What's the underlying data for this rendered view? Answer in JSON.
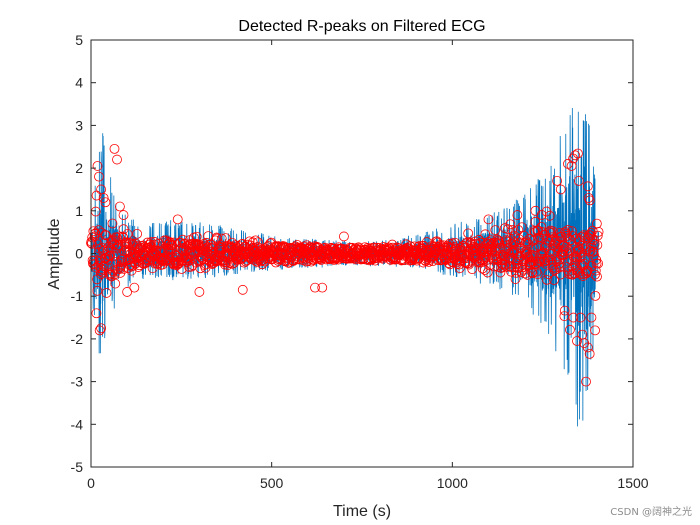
{
  "watermark": "CSDN @阔神之光",
  "colors": {
    "signal": "#0072BD",
    "peaks": "#FF0000",
    "axis": "#262626",
    "background": "#FFFFFF"
  },
  "chart_data": {
    "type": "line",
    "title": "Detected R-peaks on Filtered ECG",
    "xlabel": "Time (s)",
    "ylabel": "Amplitude",
    "xlim": [
      0,
      1500
    ],
    "ylim": [
      -5,
      5
    ],
    "x_ticks": [
      0,
      500,
      1000,
      1500
    ],
    "y_ticks": [
      -5,
      -4,
      -3,
      -2,
      -1,
      0,
      1,
      2,
      3,
      4,
      5
    ],
    "grid": false,
    "series": [
      {
        "name": "Filtered ECG",
        "style": "line",
        "x_range": [
          0,
          1405
        ],
        "envelope": {
          "x": [
            0,
            10,
            20,
            30,
            50,
            75,
            100,
            150,
            200,
            300,
            400,
            500,
            600,
            700,
            800,
            900,
            1000,
            1100,
            1150,
            1200,
            1250,
            1300,
            1330,
            1350,
            1370,
            1390,
            1405
          ],
          "upper": [
            1.0,
            1.8,
            2.7,
            3.0,
            2.0,
            1.4,
            0.9,
            0.7,
            0.8,
            0.75,
            0.6,
            0.45,
            0.35,
            0.3,
            0.3,
            0.45,
            0.7,
            0.9,
            1.1,
            1.4,
            1.9,
            2.8,
            3.8,
            4.4,
            3.8,
            2.6,
            1.0
          ],
          "lower": [
            -1.0,
            -1.8,
            -2.5,
            -2.3,
            -1.6,
            -1.1,
            -0.8,
            -0.6,
            -0.65,
            -0.6,
            -0.5,
            -0.4,
            -0.35,
            -0.3,
            -0.3,
            -0.35,
            -0.55,
            -0.75,
            -0.9,
            -1.2,
            -1.7,
            -2.6,
            -3.7,
            -4.2,
            -4.0,
            -2.5,
            -0.8
          ]
        }
      },
      {
        "name": "Detected R-peaks",
        "style": "circle-markers",
        "x_range": [
          0,
          1405
        ],
        "note": "dense red circle markers at detected peaks over whole record",
        "points": [
          [
            18,
            2.05
          ],
          [
            22,
            1.8
          ],
          [
            28,
            1.5
          ],
          [
            15,
            -1.4
          ],
          [
            24,
            -1.8
          ],
          [
            28,
            -1.75
          ],
          [
            35,
            1.3
          ],
          [
            40,
            1.2
          ],
          [
            65,
            2.45
          ],
          [
            72,
            2.2
          ],
          [
            80,
            1.1
          ],
          [
            90,
            0.9
          ],
          [
            100,
            -0.9
          ],
          [
            120,
            -0.8
          ],
          [
            240,
            0.8
          ],
          [
            300,
            -0.9
          ],
          [
            420,
            -0.85
          ],
          [
            620,
            -0.8
          ],
          [
            640,
            -0.8
          ],
          [
            700,
            0.4
          ],
          [
            1100,
            0.8
          ],
          [
            1180,
            0.9
          ],
          [
            1230,
            1.0
          ],
          [
            1290,
            1.7
          ],
          [
            1300,
            1.5
          ],
          [
            1320,
            2.1
          ],
          [
            1330,
            2.05
          ],
          [
            1340,
            2.3
          ],
          [
            1350,
            1.7
          ],
          [
            1355,
            -1.5
          ],
          [
            1360,
            -1.9
          ],
          [
            1365,
            -2.1
          ],
          [
            1375,
            -2.2
          ],
          [
            1380,
            -2.35
          ],
          [
            1385,
            -1.5
          ],
          [
            1395,
            -1.8
          ],
          [
            1370,
            -3.0
          ],
          [
            1345,
            -2.05
          ],
          [
            1335,
            -1.5
          ],
          [
            1400,
            0.7
          ]
        ]
      }
    ]
  }
}
